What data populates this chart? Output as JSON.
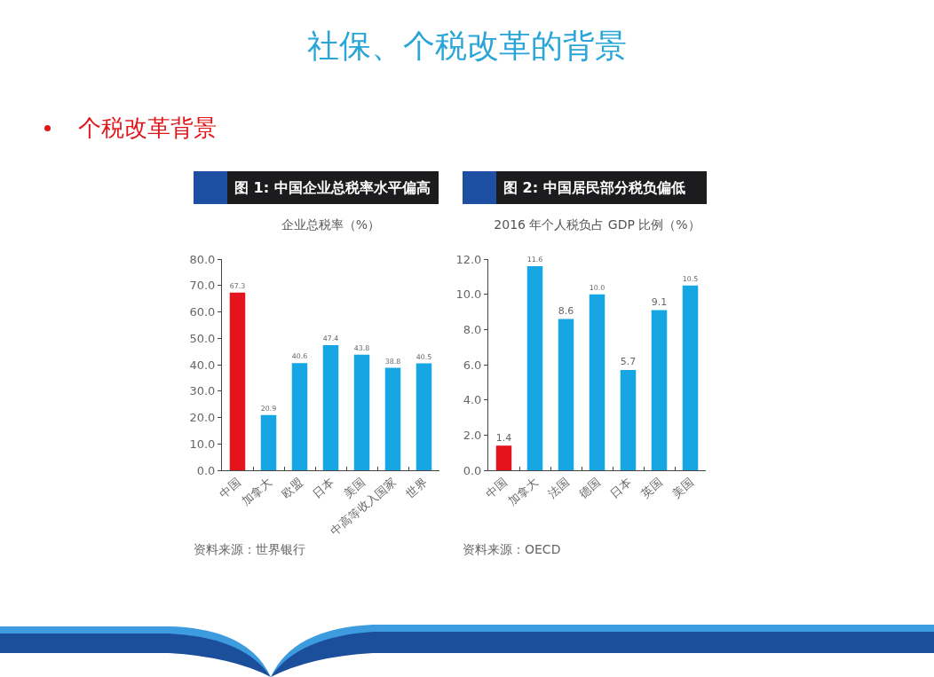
{
  "chart_data": [
    {
      "type": "other",
      "title": "社保、个税改革的背景",
      "subtitle": "个税改革背景"
    },
    {
      "type": "bar",
      "title": "图 1: 中国企业总税率水平偏高",
      "subtitle": "企业总税率（%）",
      "categories": [
        "中国",
        "加拿大",
        "欧盟",
        "日本",
        "美国",
        "中高等收入国家",
        "世界"
      ],
      "values": [
        67.3,
        20.9,
        40.6,
        47.4,
        43.8,
        38.8,
        40.5
      ],
      "colors": [
        "#e5141c",
        "#16a6e3",
        "#16a6e3",
        "#16a6e3",
        "#16a6e3",
        "#16a6e3",
        "#16a6e3"
      ],
      "data_labels": true,
      "ylim": [
        0,
        80
      ],
      "yticks": [
        {
          "value": 0,
          "label": "0.0"
        },
        {
          "value": 10,
          "label": "10.0"
        },
        {
          "value": 20,
          "label": "20.0"
        },
        {
          "value": 30,
          "label": "30.0"
        },
        {
          "value": 40,
          "label": "40.0"
        },
        {
          "value": 50,
          "label": "50.0"
        },
        {
          "value": 60,
          "label": "60.0"
        },
        {
          "value": 70,
          "label": "70.0"
        },
        {
          "value": 80,
          "label": "80.0"
        }
      ],
      "annotations": [
        "资料来源：世界银行"
      ]
    },
    {
      "type": "bar",
      "title": "图 2: 中国居民部分税负偏低",
      "subtitle": "2016 年个人税负占 GDP 比例（%）",
      "categories": [
        "中国",
        "加拿大",
        "法国",
        "德国",
        "日本",
        "英国",
        "美国"
      ],
      "values": [
        1.4,
        11.6,
        8.6,
        10,
        5.7,
        9.1,
        10.5
      ],
      "value_labels": [
        "1.4",
        "11.6",
        "8.6",
        "10.0",
        "5.7",
        "9.1",
        "10.5"
      ],
      "colors": [
        "#e5141c",
        "#16a6e3",
        "#16a6e3",
        "#16a6e3",
        "#16a6e3",
        "#16a6e3",
        "#16a6e3"
      ],
      "ylim": [
        0,
        12
      ],
      "yticks": [
        {
          "value": 0,
          "label": "0.0"
        },
        {
          "value": 2,
          "label": "2.0"
        },
        {
          "value": 4,
          "label": "4.0"
        },
        {
          "value": 6,
          "label": "6.0"
        },
        {
          "value": 8,
          "label": "8.0"
        },
        {
          "value": 10,
          "label": "10.0"
        },
        {
          "value": 12,
          "label": "12.0"
        }
      ],
      "annotations": [
        "资料来源：OECD"
      ]
    }
  ]
}
